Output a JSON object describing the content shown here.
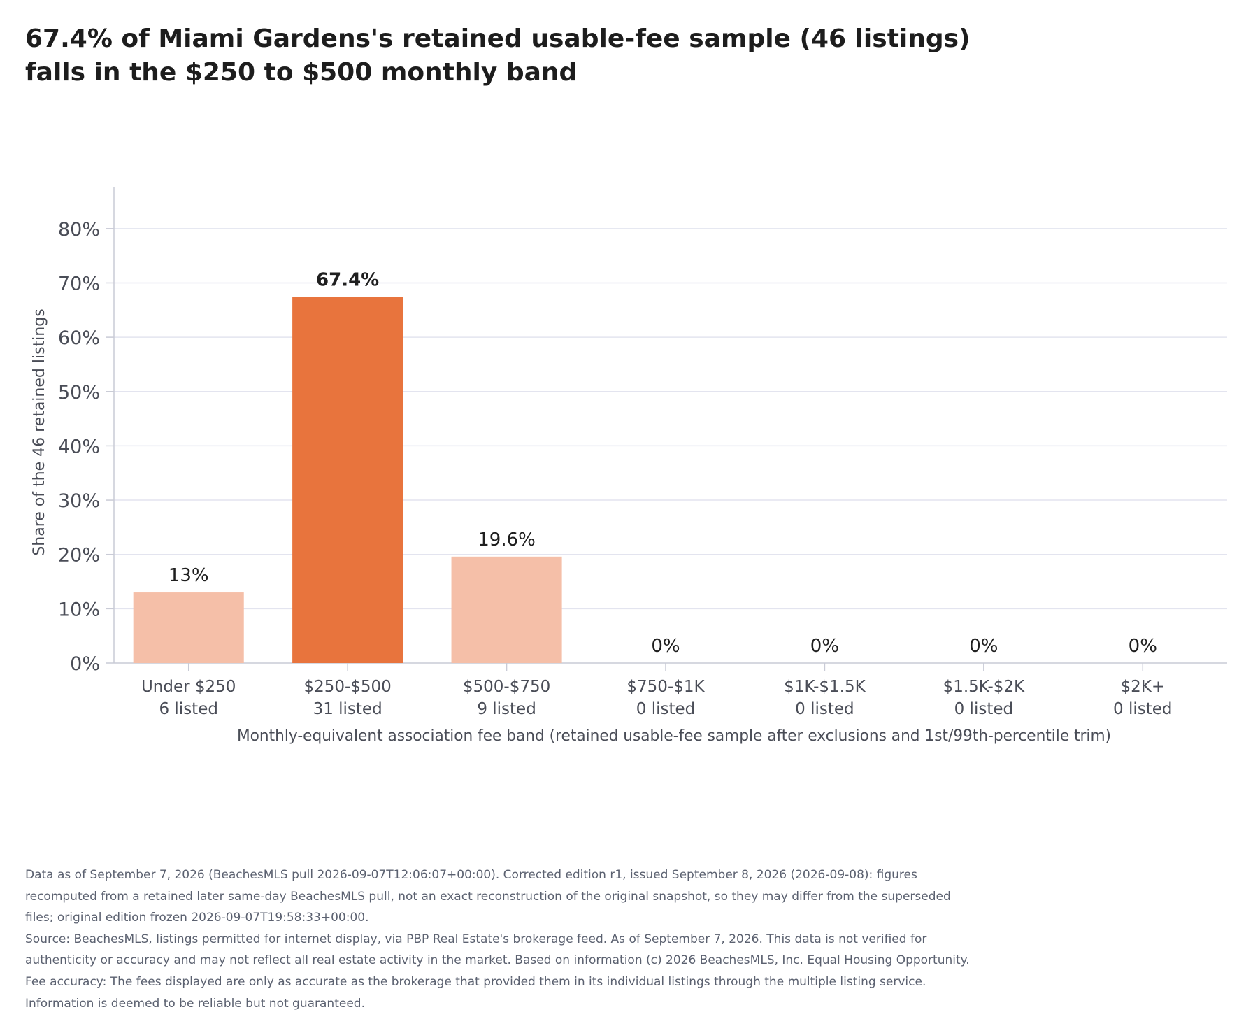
{
  "title_lines": [
    "67.4% of Miami Gardens's retained usable-fee sample (46 listings)",
    "falls in the $250 to $500 monthly band"
  ],
  "chart_data": {
    "type": "bar",
    "categories": [
      "Under $250",
      "$250-$500",
      "$500-$750",
      "$750-$1K",
      "$1K-$1.5K",
      "$1.5K-$2K",
      "$2K+"
    ],
    "counts_labels": [
      "6 listed",
      "31 listed",
      "9 listed",
      "0 listed",
      "0 listed",
      "0 listed",
      "0 listed"
    ],
    "values": [
      13.0,
      67.4,
      19.6,
      0,
      0,
      0,
      0
    ],
    "value_labels": [
      "13%",
      "67.4%",
      "19.6%",
      "0%",
      "0%",
      "0%",
      "0%"
    ],
    "highlight_index": 1,
    "ylabel": "Share of the 46 retained listings",
    "xlabel": "Monthly-equivalent association fee band (retained usable-fee sample after exclusions and 1st/99th-percentile trim)",
    "ylim": [
      0,
      85
    ],
    "yticks": [
      0,
      10,
      20,
      30,
      40,
      50,
      60,
      70,
      80
    ],
    "ytick_labels": [
      "0%",
      "10%",
      "20%",
      "30%",
      "40%",
      "50%",
      "60%",
      "70%",
      "80%"
    ],
    "grid": true,
    "colors": {
      "highlight": "#e8743d",
      "base": "#f5bfa8",
      "grid": "#e3e4ef",
      "axis": "#c9cbd6",
      "tick_text": "#4a4d57",
      "label_text": "#1f1f1f"
    }
  },
  "notes": [
    "Data as of September 7, 2026 (BeachesMLS pull 2026-09-07T12:06:07+00:00). Corrected edition r1, issued September 8, 2026 (2026-09-08): figures recomputed from a retained later same-day BeachesMLS pull, not an exact reconstruction of the original snapshot, so they may differ from the superseded files; original edition frozen 2026-09-07T19:58:33+00:00.",
    "Source: BeachesMLS, listings permitted for internet display, via PBP Real Estate's brokerage feed. As of September 7, 2026. This data is not verified for authenticity or accuracy and may not reflect all real estate activity in the market. Based on information (c) 2026 BeachesMLS, Inc. Equal Housing Opportunity. Fee accuracy: The fees displayed are only as accurate as the brokerage that provided them in its individual listings through the multiple listing service. Information is deemed to be reliable but not guaranteed."
  ]
}
